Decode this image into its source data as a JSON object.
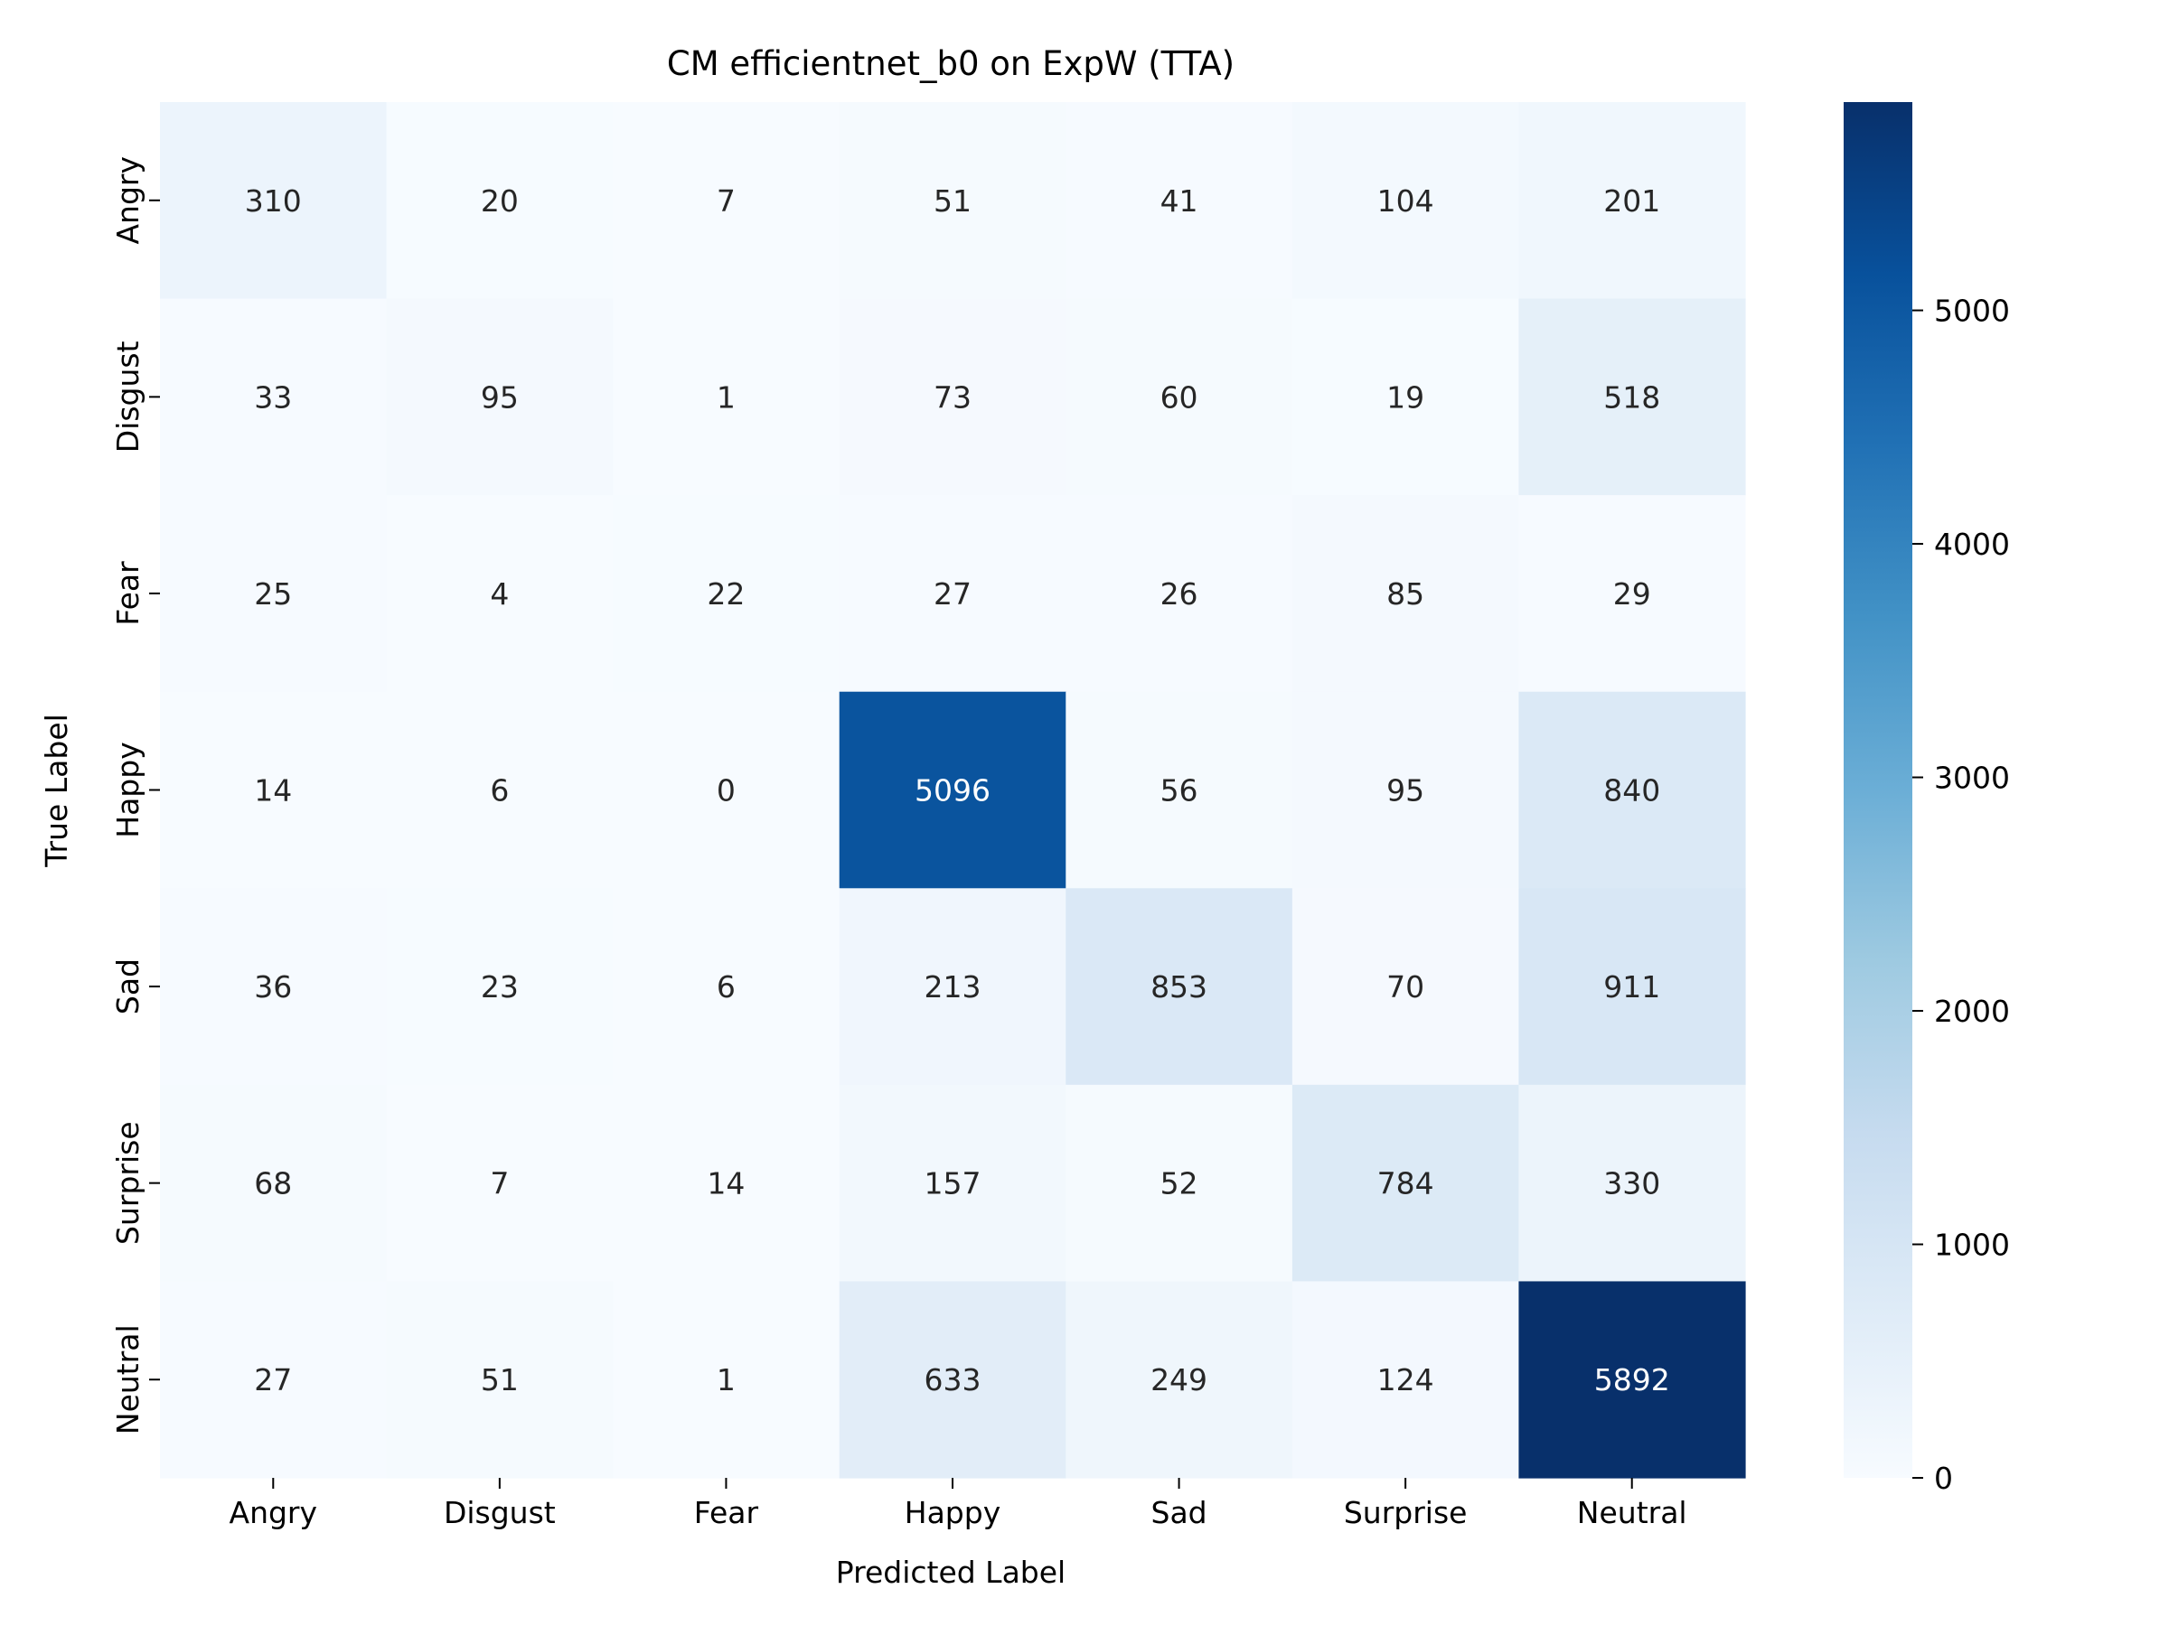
{
  "chart_data": {
    "type": "heatmap",
    "title": "CM efficientnet_b0 on ExpW (TTA)",
    "xlabel": "Predicted Label",
    "ylabel": "True Label",
    "x_categories": [
      "Angry",
      "Disgust",
      "Fear",
      "Happy",
      "Sad",
      "Surprise",
      "Neutral"
    ],
    "y_categories": [
      "Angry",
      "Disgust",
      "Fear",
      "Happy",
      "Sad",
      "Surprise",
      "Neutral"
    ],
    "values": [
      [
        310,
        20,
        7,
        51,
        41,
        104,
        201
      ],
      [
        33,
        95,
        1,
        73,
        60,
        19,
        518
      ],
      [
        25,
        4,
        22,
        27,
        26,
        85,
        29
      ],
      [
        14,
        6,
        0,
        5096,
        56,
        95,
        840
      ],
      [
        36,
        23,
        6,
        213,
        853,
        70,
        911
      ],
      [
        68,
        7,
        14,
        157,
        52,
        784,
        330
      ],
      [
        27,
        51,
        1,
        633,
        249,
        124,
        5892
      ]
    ],
    "colorscale": "Blues",
    "colorbar": {
      "min": 0,
      "max": 5892,
      "ticks": [
        0,
        1000,
        2000,
        3000,
        4000,
        5000
      ],
      "tick_labels": [
        "0",
        "1000",
        "2000",
        "3000",
        "4000",
        "5000"
      ]
    },
    "colors": {
      "light_text": "#ffffff",
      "dark_text": "#262626"
    }
  }
}
